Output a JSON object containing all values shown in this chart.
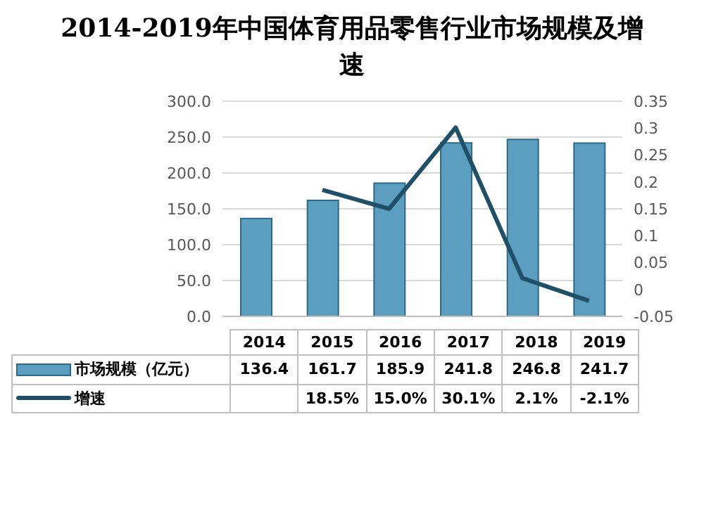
{
  "chart_data": {
    "type": "bar",
    "title": "2014-2019年中国体育用品零售行业市场规模及增速",
    "categories": [
      "2014",
      "2015",
      "2016",
      "2017",
      "2018",
      "2019"
    ],
    "series": [
      {
        "name": "市场规模（亿元）",
        "color": "#5b9ec0",
        "values": [
          136.4,
          161.7,
          185.9,
          241.8,
          246.8,
          241.7
        ]
      },
      {
        "name": "增速",
        "type": "line",
        "axis": "y2",
        "color": "#1f5068",
        "values": [
          null,
          0.185,
          0.15,
          0.301,
          0.021,
          -0.021
        ],
        "value_labels": [
          null,
          "18.5%",
          "15.0%",
          "30.1%",
          "2.1%",
          "-2.1%"
        ]
      }
    ],
    "data_labels": true,
    "ylim": [
      0,
      300
    ],
    "yticks": [
      {
        "value": 0,
        "label": "0.0"
      },
      {
        "value": 50,
        "label": "50.0"
      },
      {
        "value": 100,
        "label": "100.0"
      },
      {
        "value": 150,
        "label": "150.0"
      },
      {
        "value": 200,
        "label": "200.0"
      },
      {
        "value": 250,
        "label": "250.0"
      },
      {
        "value": 300,
        "label": "300.0"
      }
    ],
    "y2lim": [
      -0.05,
      0.35
    ],
    "y2ticks": [
      -0.05,
      0,
      0.05,
      0.1,
      0.15,
      0.2,
      0.25,
      0.3,
      0.35
    ],
    "grid": "y",
    "legend": "bottom",
    "marker": "none"
  }
}
